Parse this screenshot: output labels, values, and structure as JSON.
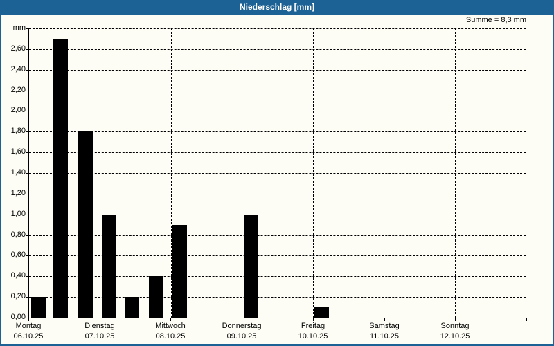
{
  "window": {
    "title": "Niederschlag [mm]"
  },
  "summary": "Summe = 8,3 mm",
  "colors": {
    "titlebar_and_border": "#1c6295",
    "background": "#fdfdf5",
    "bar": "#000000",
    "grid": "#000000",
    "title_text": "#ffffff"
  },
  "chart_data": {
    "type": "bar",
    "title": "Niederschlag [mm]",
    "y_unit_label": "mm",
    "ylim": [
      0,
      2.8
    ],
    "ytick_step": 0.2,
    "ytick_labels": [
      "0,00",
      "0,20",
      "0,40",
      "0,60",
      "0,80",
      "1,00",
      "1,20",
      "1,40",
      "1,60",
      "1,80",
      "2,00",
      "2,20",
      "2,40",
      "2,60"
    ],
    "grid": "dashed horizontal every 0.2, dashed vertical at each day boundary",
    "legend": false,
    "total_label": "Summe = 8,3 mm",
    "total_value_mm": 8.3,
    "days": [
      {
        "label": "Montag",
        "date": "06.10.25",
        "values": [
          0.2,
          2.7,
          1.8
        ]
      },
      {
        "label": "Dienstag",
        "date": "07.10.25",
        "values": [
          1.0,
          0.2,
          0.4
        ]
      },
      {
        "label": "Mittwoch",
        "date": "08.10.25",
        "values": [
          0.9,
          0.0,
          0.0
        ]
      },
      {
        "label": "Donnerstag",
        "date": "09.10.25",
        "values": [
          1.0,
          0.0,
          0.0
        ]
      },
      {
        "label": "Freitag",
        "date": "10.10.25",
        "values": [
          0.1,
          0.0,
          0.0
        ]
      },
      {
        "label": "Samstag",
        "date": "11.10.25",
        "values": [
          0.0,
          0.0,
          0.0
        ]
      },
      {
        "label": "Sonntag",
        "date": "12.10.25",
        "values": [
          0.0,
          0.0,
          0.0
        ]
      }
    ]
  }
}
